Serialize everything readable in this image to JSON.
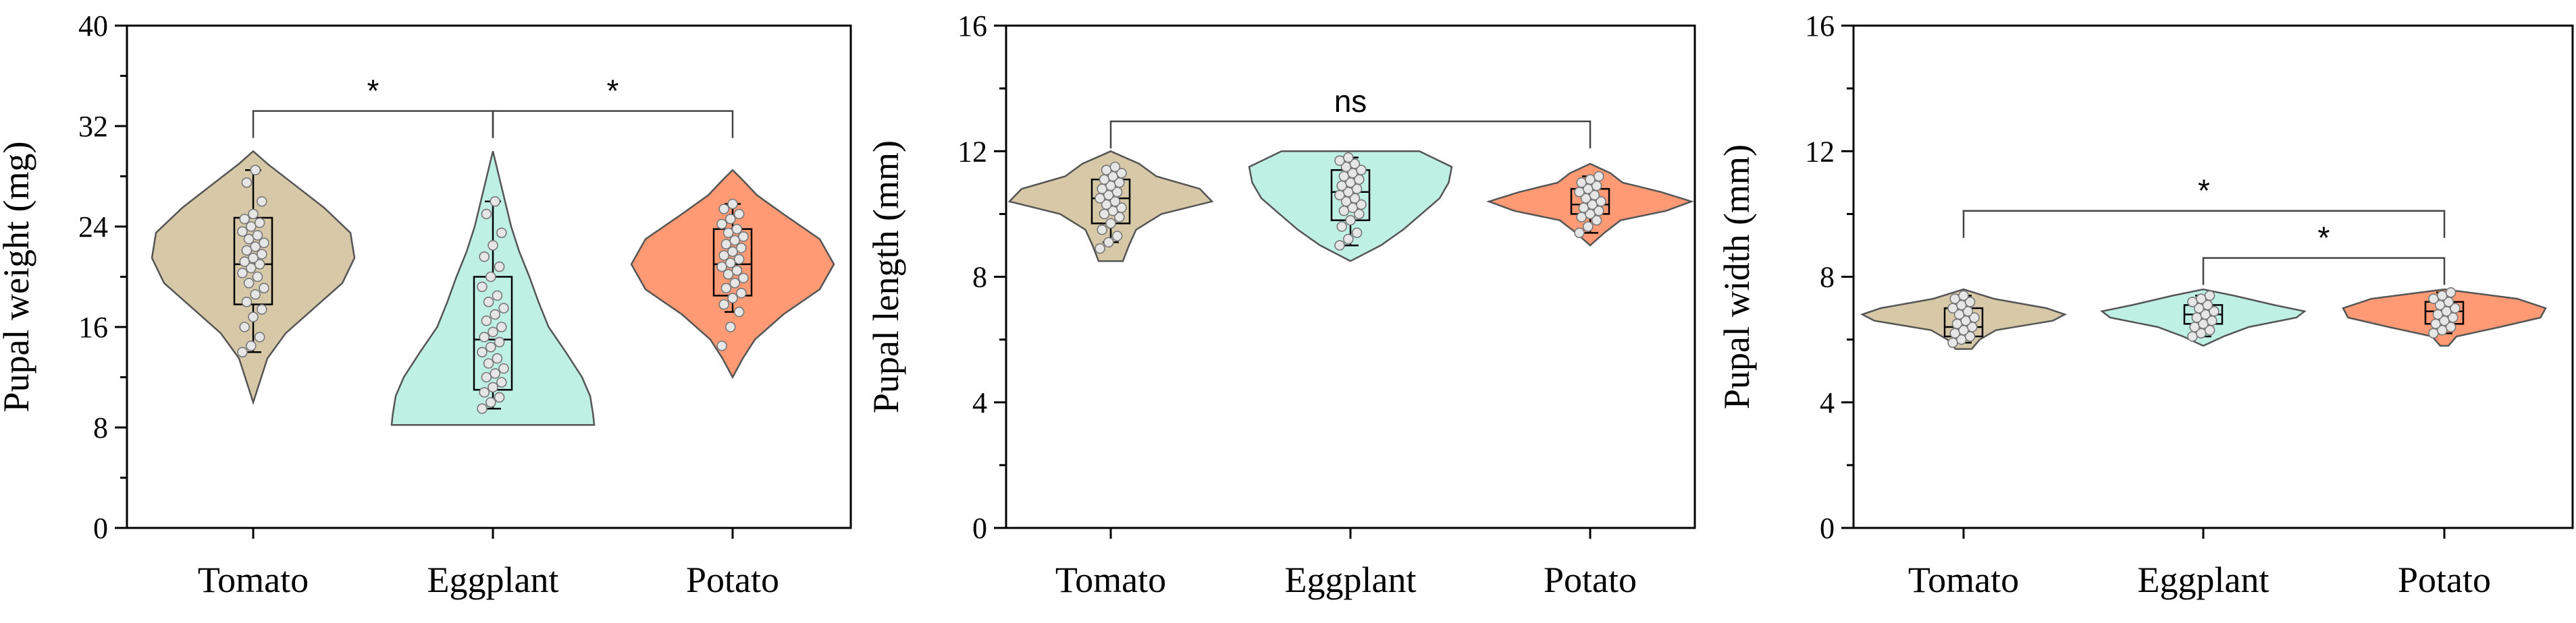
{
  "colors": {
    "Tomato": "#d7c9a8",
    "Eggplant": "#bff0e4",
    "Potato": "#ff9a75"
  },
  "chart_data": [
    {
      "type": "violin",
      "title": "",
      "xlabel": "",
      "ylabel": "Pupal weight (mg)",
      "ylim": [
        0,
        40
      ],
      "yticks": [
        0,
        8,
        16,
        24,
        32,
        40
      ],
      "categories": [
        "Tomato",
        "Eggplant",
        "Potato"
      ],
      "series": [
        {
          "name": "Tomato",
          "min": 10,
          "max": 30,
          "q1": 17.8,
          "median": 21,
          "q3": 24.7,
          "whisker_low": 14,
          "whisker_high": 28.5,
          "density": [
            [
              10,
              0
            ],
            [
              11.5,
              0.06
            ],
            [
              13.5,
              0.14
            ],
            [
              15.5,
              0.32
            ],
            [
              17.5,
              0.6
            ],
            [
              19.5,
              0.88
            ],
            [
              21.5,
              1
            ],
            [
              23.5,
              0.96
            ],
            [
              25.5,
              0.7
            ],
            [
              27.5,
              0.38
            ],
            [
              29,
              0.14
            ],
            [
              30,
              0
            ]
          ],
          "points": [
            14,
            14.5,
            15.2,
            16,
            16.8,
            17.4,
            18,
            18.6,
            19.1,
            19.5,
            20,
            20.3,
            20.7,
            21,
            21.2,
            21.5,
            21.8,
            22.1,
            22.4,
            22.7,
            23,
            23.3,
            23.6,
            24,
            24.3,
            24.6,
            25,
            26,
            27.5,
            28.5
          ]
        },
        {
          "name": "Eggplant",
          "min": 8.2,
          "max": 30,
          "q1": 11,
          "median": 15,
          "q3": 20,
          "whisker_low": 9.5,
          "whisker_high": 26,
          "density": [
            [
              8.2,
              1
            ],
            [
              9,
              0.99
            ],
            [
              10.5,
              0.96
            ],
            [
              12,
              0.88
            ],
            [
              14,
              0.72
            ],
            [
              16,
              0.55
            ],
            [
              18,
              0.45
            ],
            [
              20,
              0.36
            ],
            [
              22,
              0.26
            ],
            [
              24,
              0.18
            ],
            [
              26,
              0.12
            ],
            [
              28,
              0.06
            ],
            [
              30,
              0
            ]
          ],
          "points": [
            9.5,
            10,
            10.4,
            10.8,
            11.2,
            11.6,
            12,
            12.3,
            12.7,
            13.1,
            13.5,
            14,
            14.4,
            14.8,
            15.2,
            15.6,
            16,
            16.5,
            17,
            17.5,
            18,
            18.5,
            19.2,
            20,
            20.8,
            21.6,
            22.5,
            23.5,
            25,
            26
          ]
        },
        {
          "name": "Potato",
          "min": 12,
          "max": 28.5,
          "q1": 18.5,
          "median": 21,
          "q3": 23.8,
          "whisker_low": 17.2,
          "whisker_high": 25.8,
          "density": [
            [
              12,
              0
            ],
            [
              13.5,
              0.1
            ],
            [
              15,
              0.22
            ],
            [
              17,
              0.5
            ],
            [
              19,
              0.86
            ],
            [
              21,
              1
            ],
            [
              23,
              0.86
            ],
            [
              25,
              0.5
            ],
            [
              26.5,
              0.24
            ],
            [
              27.7,
              0.1
            ],
            [
              28.5,
              0
            ]
          ],
          "points": [
            14.5,
            16,
            17.2,
            17.8,
            18.3,
            18.7,
            19.1,
            19.5,
            19.9,
            20.2,
            20.5,
            20.8,
            21.1,
            21.4,
            21.7,
            22,
            22.3,
            22.6,
            22.9,
            23.2,
            23.5,
            23.8,
            24.2,
            24.6,
            25,
            25.4,
            25.8
          ]
        }
      ],
      "significance": [
        {
          "from": "Tomato",
          "to": "Eggplant",
          "y": 33.2,
          "label": "*"
        },
        {
          "from": "Eggplant",
          "to": "Potato",
          "y": 33.2,
          "label": "*"
        }
      ]
    },
    {
      "type": "violin",
      "title": "",
      "xlabel": "",
      "ylabel": "Pupal length (mm)",
      "ylim": [
        0,
        16
      ],
      "yticks": [
        0,
        4,
        8,
        12,
        16
      ],
      "categories": [
        "Tomato",
        "Eggplant",
        "Potato"
      ],
      "series": [
        {
          "name": "Tomato",
          "min": 8.5,
          "max": 12,
          "q1": 9.7,
          "median": 10.5,
          "q3": 11.1,
          "whisker_low": 9.1,
          "whisker_high": 11.5,
          "density": [
            [
              8.5,
              0.12
            ],
            [
              9,
              0.18
            ],
            [
              9.5,
              0.25
            ],
            [
              10,
              0.5
            ],
            [
              10.4,
              1
            ],
            [
              10.8,
              0.88
            ],
            [
              11.2,
              0.45
            ],
            [
              11.6,
              0.28
            ],
            [
              12,
              0
            ]
          ],
          "points": [
            8.9,
            9.1,
            9.3,
            9.5,
            9.7,
            9.9,
            10,
            10.1,
            10.2,
            10.3,
            10.4,
            10.5,
            10.6,
            10.7,
            10.8,
            10.9,
            11,
            11.1,
            11.2,
            11.3,
            11.4,
            11.5
          ]
        },
        {
          "name": "Eggplant",
          "min": 8.5,
          "max": 12,
          "q1": 9.8,
          "median": 10.7,
          "q3": 11.4,
          "whisker_low": 9.0,
          "whisker_high": 11.8,
          "density": [
            [
              8.5,
              0
            ],
            [
              9,
              0.3
            ],
            [
              9.5,
              0.52
            ],
            [
              10,
              0.7
            ],
            [
              10.5,
              0.88
            ],
            [
              11,
              0.97
            ],
            [
              11.5,
              1
            ],
            [
              12,
              0.68
            ]
          ],
          "points": [
            9,
            9.2,
            9.4,
            9.6,
            9.8,
            10,
            10.1,
            10.2,
            10.3,
            10.4,
            10.5,
            10.6,
            10.7,
            10.8,
            10.9,
            11,
            11.1,
            11.2,
            11.3,
            11.4,
            11.5,
            11.6,
            11.7,
            11.8
          ]
        },
        {
          "name": "Potato",
          "min": 9,
          "max": 11.6,
          "q1": 10.0,
          "median": 10.3,
          "q3": 10.8,
          "whisker_low": 9.4,
          "whisker_high": 11.2,
          "density": [
            [
              9,
              0
            ],
            [
              9.4,
              0.14
            ],
            [
              9.8,
              0.3
            ],
            [
              10.1,
              0.75
            ],
            [
              10.4,
              1
            ],
            [
              10.7,
              0.7
            ],
            [
              11,
              0.32
            ],
            [
              11.3,
              0.2
            ],
            [
              11.6,
              0
            ]
          ],
          "points": [
            9.4,
            9.6,
            9.8,
            9.9,
            10,
            10.1,
            10.2,
            10.3,
            10.4,
            10.5,
            10.6,
            10.7,
            10.8,
            10.9,
            11,
            11.1,
            11.2
          ]
        }
      ],
      "significance": [
        {
          "from": "Tomato",
          "to": "Potato",
          "y": 12.95,
          "label": "ns"
        }
      ]
    },
    {
      "type": "violin",
      "title": "",
      "xlabel": "",
      "ylabel": "Pupal width (mm)",
      "ylim": [
        0,
        16
      ],
      "yticks": [
        0,
        4,
        8,
        12,
        16
      ],
      "categories": [
        "Tomato",
        "Eggplant",
        "Potato"
      ],
      "series": [
        {
          "name": "Tomato",
          "min": 5.7,
          "max": 7.6,
          "q1": 6.1,
          "median": 6.4,
          "q3": 7.0,
          "whisker_low": 5.9,
          "whisker_high": 7.4,
          "density": [
            [
              5.7,
              0.08
            ],
            [
              6,
              0.16
            ],
            [
              6.3,
              0.32
            ],
            [
              6.6,
              0.88
            ],
            [
              6.8,
              1
            ],
            [
              7,
              0.82
            ],
            [
              7.3,
              0.3
            ],
            [
              7.6,
              0
            ]
          ],
          "points": [
            5.9,
            6,
            6.1,
            6.2,
            6.3,
            6.4,
            6.5,
            6.6,
            6.7,
            6.8,
            6.9,
            7,
            7.1,
            7.2,
            7.3,
            7.4
          ]
        },
        {
          "name": "Eggplant",
          "min": 5.8,
          "max": 7.6,
          "q1": 6.5,
          "median": 6.8,
          "q3": 7.1,
          "whisker_low": 6.1,
          "whisker_high": 7.4,
          "density": [
            [
              5.8,
              0
            ],
            [
              6.1,
              0.2
            ],
            [
              6.4,
              0.45
            ],
            [
              6.7,
              0.92
            ],
            [
              6.9,
              1
            ],
            [
              7.1,
              0.7
            ],
            [
              7.4,
              0.3
            ],
            [
              7.6,
              0
            ]
          ],
          "points": [
            6.1,
            6.2,
            6.3,
            6.4,
            6.5,
            6.6,
            6.7,
            6.8,
            6.9,
            7,
            7.1,
            7.2,
            7.3,
            7.4
          ]
        },
        {
          "name": "Potato",
          "min": 5.8,
          "max": 7.6,
          "q1": 6.5,
          "median": 6.9,
          "q3": 7.2,
          "whisker_low": 6.2,
          "whisker_high": 7.5,
          "density": [
            [
              5.8,
              0.04
            ],
            [
              6.1,
              0.12
            ],
            [
              6.4,
              0.55
            ],
            [
              6.7,
              0.95
            ],
            [
              7,
              1
            ],
            [
              7.3,
              0.72
            ],
            [
              7.6,
              0
            ]
          ],
          "points": [
            6.2,
            6.3,
            6.4,
            6.5,
            6.6,
            6.7,
            6.8,
            6.9,
            7,
            7.1,
            7.2,
            7.3,
            7.4,
            7.5
          ]
        }
      ],
      "significance": [
        {
          "from": "Tomato",
          "to": "Potato",
          "y": 10.1,
          "label": "*"
        },
        {
          "from": "Eggplant",
          "to": "Potato",
          "y": 8.6,
          "label": "*"
        }
      ]
    }
  ]
}
